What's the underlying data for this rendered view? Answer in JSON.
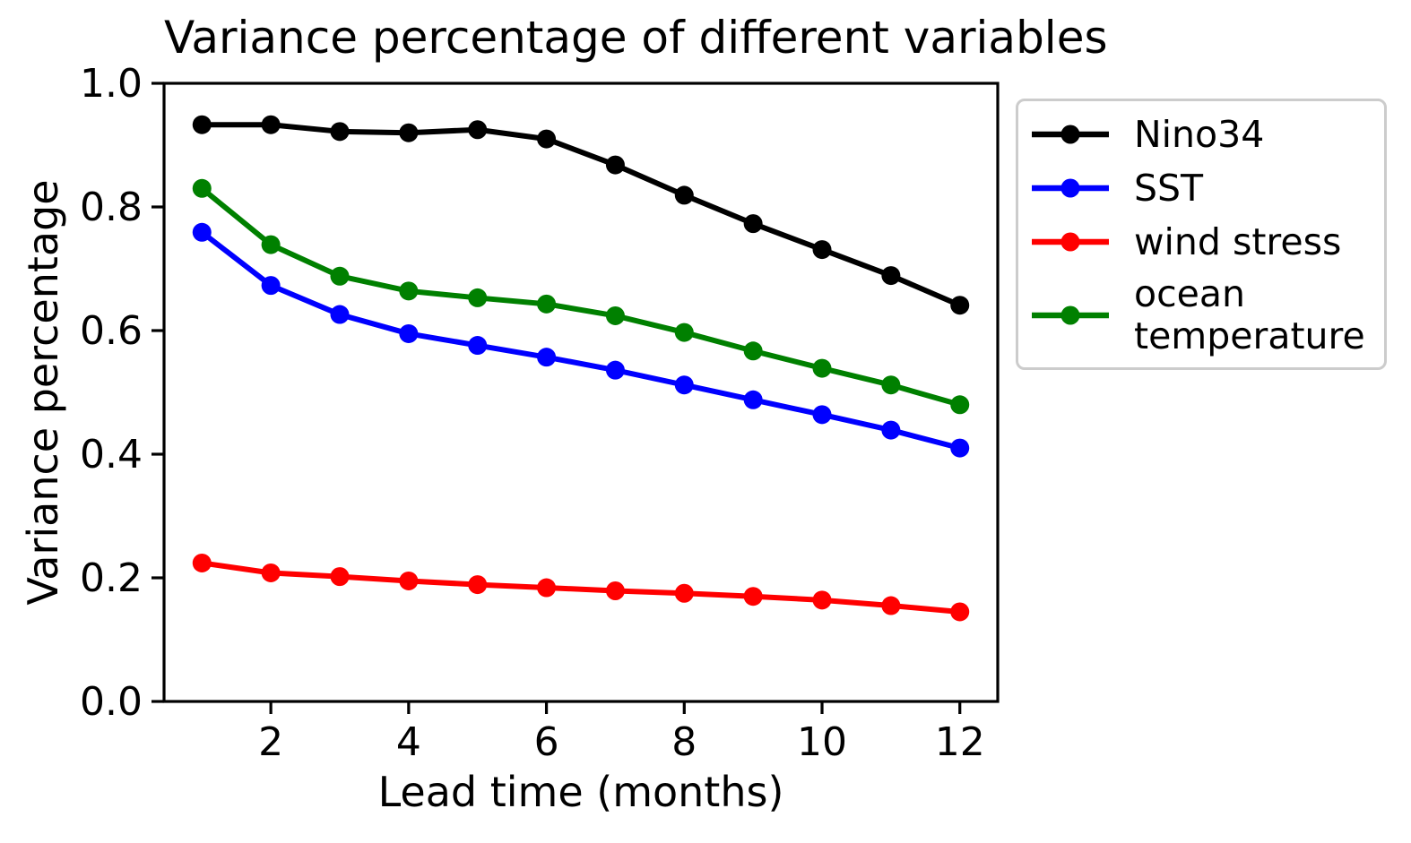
{
  "chart_data": {
    "type": "line",
    "title": "Variance percentage of different variables",
    "xlabel": "Lead time (months)",
    "ylabel": "Variance percentage",
    "grid": false,
    "legend_position": "outside upper right",
    "xlim": [
      0.45,
      12.55
    ],
    "ylim": [
      0.0,
      1.0
    ],
    "x": [
      1,
      2,
      3,
      4,
      5,
      6,
      7,
      8,
      9,
      10,
      11,
      12
    ],
    "x_ticks": [
      2,
      4,
      6,
      8,
      10,
      12
    ],
    "x_tick_labels": [
      "2",
      "4",
      "6",
      "8",
      "10",
      "12"
    ],
    "y_ticks": [
      0.0,
      0.2,
      0.4,
      0.6,
      0.8,
      1.0
    ],
    "y_tick_labels": [
      "0.0",
      "0.2",
      "0.4",
      "0.6",
      "0.8",
      "1.0"
    ],
    "series": [
      {
        "id": "nino34",
        "name": "Nino34",
        "color": "#000000",
        "marker": "circle",
        "values": [
          0.933,
          0.933,
          0.922,
          0.92,
          0.925,
          0.91,
          0.868,
          0.819,
          0.773,
          0.731,
          0.689,
          0.641
        ]
      },
      {
        "id": "sst",
        "name": "SST",
        "color": "#0000ff",
        "marker": "circle",
        "values": [
          0.759,
          0.673,
          0.626,
          0.595,
          0.576,
          0.557,
          0.536,
          0.512,
          0.488,
          0.464,
          0.439,
          0.41
        ]
      },
      {
        "id": "wind-stress",
        "name": "wind stress",
        "color": "#ff0000",
        "marker": "circle",
        "values": [
          0.224,
          0.208,
          0.202,
          0.195,
          0.189,
          0.184,
          0.179,
          0.175,
          0.17,
          0.164,
          0.155,
          0.145
        ]
      },
      {
        "id": "ocean-temperature",
        "name": "ocean\ntemperature",
        "color": "#008000",
        "marker": "circle",
        "values": [
          0.83,
          0.739,
          0.688,
          0.664,
          0.653,
          0.643,
          0.624,
          0.597,
          0.567,
          0.539,
          0.512,
          0.48
        ]
      }
    ]
  }
}
